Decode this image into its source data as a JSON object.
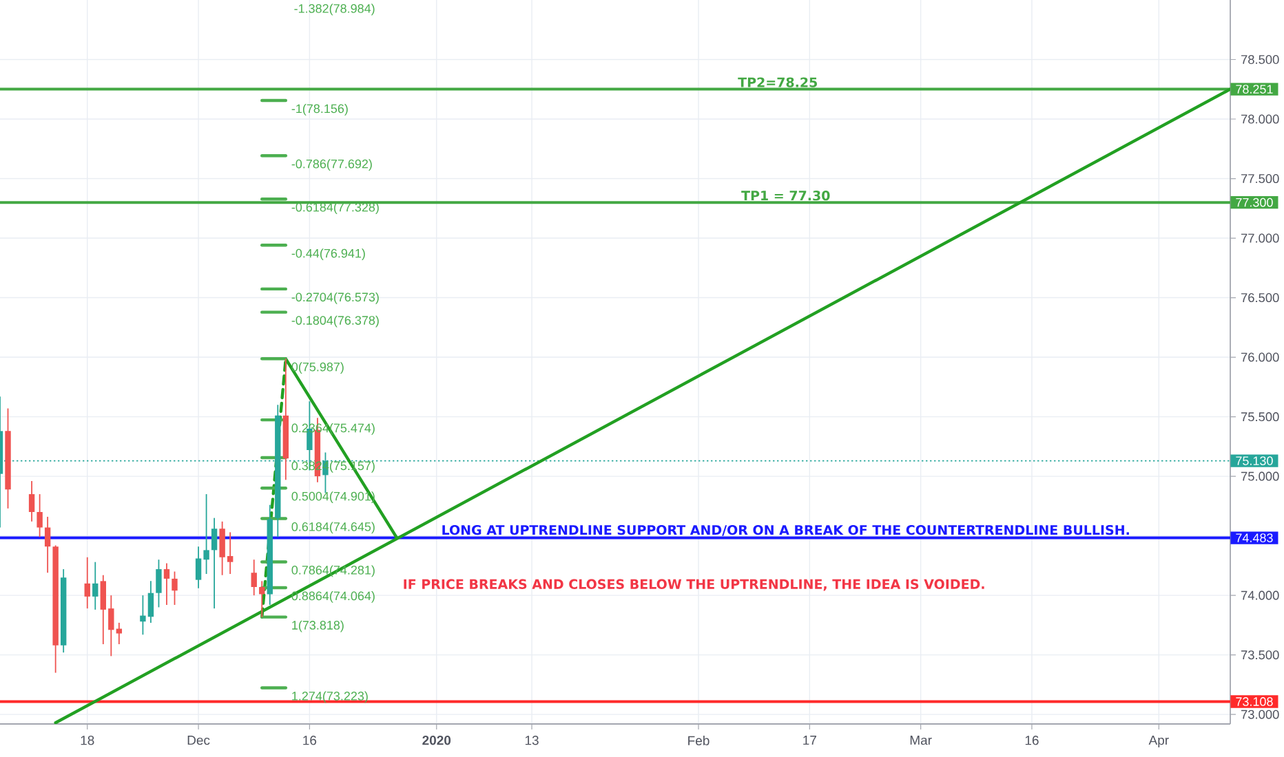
{
  "chart_data": {
    "type": "candlestick",
    "x": [
      "2019-11-07",
      "2019-11-08",
      "2019-11-11",
      "2019-11-12",
      "2019-11-13",
      "2019-11-14",
      "2019-11-15",
      "2019-11-18",
      "2019-11-19",
      "2019-11-20",
      "2019-11-21",
      "2019-11-22",
      "2019-11-25",
      "2019-11-26",
      "2019-11-27",
      "2019-11-28",
      "2019-11-29",
      "2019-12-02",
      "2019-12-03",
      "2019-12-04",
      "2019-12-05",
      "2019-12-06",
      "2019-12-09",
      "2019-12-10",
      "2019-12-11",
      "2019-12-12",
      "2019-12-13",
      "2019-12-16",
      "2019-12-17",
      "2019-12-18"
    ],
    "ohlc": [
      [
        75.02,
        75.67,
        74.57,
        75.38
      ],
      [
        75.38,
        75.57,
        74.73,
        74.89
      ],
      [
        74.85,
        74.96,
        74.62,
        74.7
      ],
      [
        74.7,
        74.85,
        74.49,
        74.57
      ],
      [
        74.57,
        74.66,
        74.19,
        74.41
      ],
      [
        74.41,
        74.42,
        73.35,
        73.58
      ],
      [
        73.58,
        74.22,
        73.52,
        74.15
      ],
      [
        74.1,
        74.32,
        73.89,
        73.99
      ],
      [
        73.99,
        74.28,
        73.88,
        74.1
      ],
      [
        74.12,
        74.17,
        73.59,
        73.88
      ],
      [
        73.89,
        74.0,
        73.49,
        73.71
      ],
      [
        73.72,
        73.77,
        73.59,
        73.68
      ],
      [
        73.78,
        74.0,
        73.67,
        73.83
      ],
      [
        73.82,
        74.12,
        73.77,
        74.02
      ],
      [
        74.02,
        74.3,
        73.9,
        74.22
      ],
      [
        74.22,
        74.27,
        73.92,
        74.14
      ],
      [
        74.14,
        74.2,
        73.92,
        74.04
      ],
      [
        74.13,
        74.41,
        74.06,
        74.31
      ],
      [
        74.3,
        74.85,
        74.18,
        74.38
      ],
      [
        74.38,
        74.65,
        73.89,
        74.56
      ],
      [
        74.56,
        74.62,
        74.17,
        74.32
      ],
      [
        74.33,
        74.53,
        74.18,
        74.28
      ],
      [
        74.19,
        74.3,
        74.0,
        74.07
      ],
      [
        74.07,
        74.12,
        73.818,
        74.01
      ],
      [
        74.01,
        74.76,
        73.92,
        74.64
      ],
      [
        74.65,
        75.6,
        74.49,
        75.51
      ],
      [
        75.51,
        75.987,
        74.97,
        75.15
      ],
      [
        75.22,
        75.63,
        75.05,
        75.4
      ],
      [
        75.39,
        75.49,
        74.95,
        75.0
      ],
      [
        75.01,
        75.2,
        74.86,
        75.13
      ]
    ],
    "colors": [
      "#26a69a",
      "#ef5350",
      "#ef5350",
      "#ef5350",
      "#ef5350",
      "#ef5350",
      "#26a69a",
      "#ef5350",
      "#26a69a",
      "#ef5350",
      "#ef5350",
      "#ef5350",
      "#26a69a",
      "#26a69a",
      "#26a69a",
      "#ef5350",
      "#ef5350",
      "#26a69a",
      "#26a69a",
      "#26a69a",
      "#ef5350",
      "#ef5350",
      "#ef5350",
      "#ef5350",
      "#26a69a",
      "#26a69a",
      "#ef5350",
      "#26a69a",
      "#ef5350",
      "#26a69a"
    ],
    "series": [
      {
        "type": "line",
        "color": "#22a022",
        "x": [
          "2019-11-14",
          "2020-04-10"
        ],
        "values": [
          72.93,
          78.251
        ]
      },
      {
        "type": "line",
        "color": "#22a022",
        "x": [
          "2019-12-13",
          "2019-12-27"
        ],
        "values": [
          75.987,
          74.483
        ]
      },
      {
        "type": "line",
        "color": "#22a022",
        "line_style": "dashed",
        "x": [
          "2019-12-10",
          "2019-12-13"
        ],
        "values": [
          73.818,
          75.987
        ]
      },
      {
        "type": "line",
        "color": "#4caf50",
        "x": [
          "2019-12-10",
          "2019-12-13"
        ],
        "values": [
          78.156,
          78.156
        ]
      },
      {
        "type": "line",
        "color": "#4caf50",
        "x": [
          "2019-12-10",
          "2019-12-13"
        ],
        "values": [
          77.692,
          77.692
        ]
      },
      {
        "type": "line",
        "color": "#4caf50",
        "x": [
          "2019-12-10",
          "2019-12-13"
        ],
        "values": [
          77.328,
          77.328
        ]
      },
      {
        "type": "line",
        "color": "#4caf50",
        "x": [
          "2019-12-10",
          "2019-12-13"
        ],
        "values": [
          76.941,
          76.941
        ]
      },
      {
        "type": "line",
        "color": "#4caf50",
        "x": [
          "2019-12-10",
          "2019-12-13"
        ],
        "values": [
          76.573,
          76.573
        ]
      },
      {
        "type": "line",
        "color": "#4caf50",
        "x": [
          "2019-12-10",
          "2019-12-13"
        ],
        "values": [
          76.378,
          76.378
        ]
      },
      {
        "type": "line",
        "color": "#4caf50",
        "x": [
          "2019-12-10",
          "2019-12-13"
        ],
        "values": [
          75.987,
          75.987
        ]
      },
      {
        "type": "line",
        "color": "#4caf50",
        "x": [
          "2019-12-10",
          "2019-12-13"
        ],
        "values": [
          75.474,
          75.474
        ]
      },
      {
        "type": "line",
        "color": "#4caf50",
        "x": [
          "2019-12-10",
          "2019-12-13"
        ],
        "values": [
          75.157,
          75.157
        ]
      },
      {
        "type": "line",
        "color": "#4caf50",
        "x": [
          "2019-12-10",
          "2019-12-13"
        ],
        "values": [
          74.901,
          74.901
        ]
      },
      {
        "type": "line",
        "color": "#4caf50",
        "x": [
          "2019-12-10",
          "2019-12-13"
        ],
        "values": [
          74.645,
          74.645
        ]
      },
      {
        "type": "line",
        "color": "#4caf50",
        "x": [
          "2019-12-10",
          "2019-12-13"
        ],
        "values": [
          74.281,
          74.281
        ]
      },
      {
        "type": "line",
        "color": "#4caf50",
        "x": [
          "2019-12-10",
          "2019-12-13"
        ],
        "values": [
          74.064,
          74.064
        ]
      },
      {
        "type": "line",
        "color": "#4caf50",
        "x": [
          "2019-12-10",
          "2019-12-13"
        ],
        "values": [
          73.818,
          73.818
        ]
      },
      {
        "type": "line",
        "color": "#4caf50",
        "x": [
          "2019-12-10",
          "2019-12-13"
        ],
        "values": [
          73.223,
          73.223
        ]
      }
    ],
    "ref_lines": [
      {
        "axis": "y",
        "value": 78.251,
        "label": "78.251",
        "color": "#43a843"
      },
      {
        "axis": "y",
        "value": 77.3,
        "label": "77.300",
        "color": "#43a843"
      },
      {
        "axis": "y",
        "value": 75.13,
        "label": "75.130",
        "color": "#26a69a",
        "line_style": "dotted"
      },
      {
        "axis": "y",
        "value": 74.483,
        "label": "74.483",
        "color": "#1a1aff"
      },
      {
        "axis": "y",
        "value": 73.108,
        "label": "73.108",
        "color": "#ff2a2a"
      }
    ],
    "annotations": [
      {
        "text": "TP2=78.25",
        "x": "2020-02-13",
        "y": 78.251
      },
      {
        "text": "TP1 = 77.30",
        "x": "2020-02-14",
        "y": 77.3
      },
      {
        "text": "LONG AT UPTRENDLINE SUPPORT AND/OR ON A BREAK OF THE COUNTERTRENDLINE BULLISH.",
        "x": "2020-02-14",
        "y": 74.483
      },
      "IF PRICE BREAKS AND CLOSES BELOW THE UPTRENDLINE, THE IDEA IS VOIDED.",
      "-1.382(78.984)",
      {
        "text": "-1(78.156)",
        "x": "2019-12-13",
        "y": 78.156
      },
      {
        "text": "-0.786(77.692)",
        "x": "2019-12-13",
        "y": 77.692
      },
      {
        "text": "-0.6184(77.328)",
        "x": "2019-12-13",
        "y": 77.328
      },
      {
        "text": "-0.44(76.941)",
        "x": "2019-12-13",
        "y": 76.941
      },
      {
        "text": "-0.2704(76.573)",
        "x": "2019-12-13",
        "y": 76.573
      },
      {
        "text": "-0.1804(76.378)",
        "x": "2019-12-13",
        "y": 76.378
      },
      {
        "text": "0(75.987)",
        "x": "2019-12-13",
        "y": 75.987
      },
      {
        "text": "0.2364(75.474)",
        "x": "2019-12-13",
        "y": 75.474
      },
      {
        "text": "0.3824(75.157)",
        "x": "2019-12-13",
        "y": 75.157
      },
      {
        "text": "0.5004(74.901)",
        "x": "2019-12-13",
        "y": 74.901
      },
      {
        "text": "0.6184(74.645)",
        "x": "2019-12-13",
        "y": 74.645
      },
      {
        "text": "0.7864(74.281)",
        "x": "2019-12-13",
        "y": 74.281
      },
      {
        "text": "0.8864(74.064)",
        "x": "2019-12-13",
        "y": 74.064
      },
      {
        "text": "1(73.818)",
        "x": "2019-12-13",
        "y": 73.818
      },
      {
        "text": "1.274(73.223)",
        "x": "2019-12-13",
        "y": 73.223
      }
    ],
    "xlim": [
      "2019-11-07",
      "2020-04-10"
    ],
    "xticks": [
      {
        "value": "2019-11-18",
        "label": "18"
      },
      {
        "value": "2019-12-02",
        "label": "Dec"
      },
      {
        "value": "2019-12-16",
        "label": "16"
      },
      {
        "value": "2020-01-01",
        "label": "**2020**"
      },
      {
        "value": "2020-01-13",
        "label": "13"
      },
      {
        "value": "2020-02-03",
        "label": "Feb"
      },
      {
        "value": "2020-02-17",
        "label": "17"
      },
      {
        "value": "2020-03-02",
        "label": "Mar"
      },
      {
        "value": "2020-03-16",
        "label": "16"
      },
      {
        "value": "2020-04-01",
        "label": "Apr"
      }
    ],
    "ylim": [
      72.92,
      79.0
    ],
    "yticks": [
      {
        "value": 73,
        "label": "73.000"
      },
      {
        "value": 73.5,
        "label": "73.500"
      },
      {
        "value": 74,
        "label": "74.000"
      },
      {
        "value": 74.5,
        "label": null
      },
      {
        "value": 75,
        "label": "75.000"
      },
      {
        "value": 75.5,
        "label": "75.500"
      },
      {
        "value": 76,
        "label": "76.000"
      },
      {
        "value": 76.5,
        "label": "76.500"
      },
      {
        "value": 77,
        "label": "77.000"
      },
      {
        "value": 77.5,
        "label": "77.500"
      },
      {
        "value": 78,
        "label": "78.000"
      },
      {
        "value": 78.5,
        "label": "78.500"
      }
    ],
    "grid": true
  }
}
